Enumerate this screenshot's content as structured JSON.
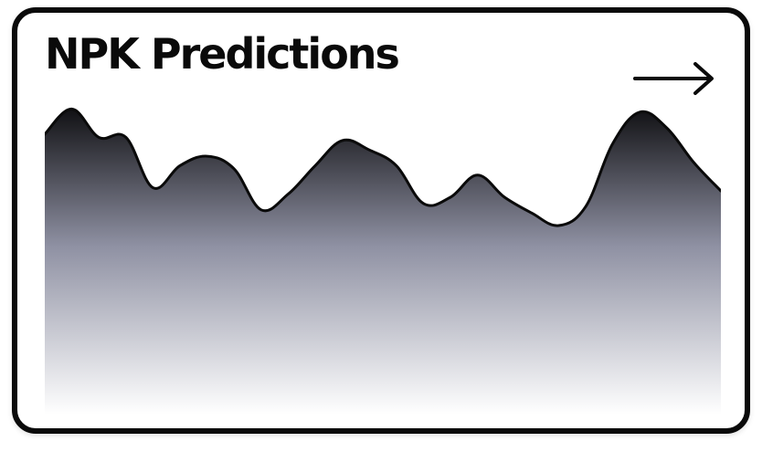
{
  "card": {
    "title": "NPK Predictions",
    "arrow_icon": "arrow-right-icon"
  },
  "colors": {
    "border": "#0a0a0a",
    "area_top": "#111114",
    "area_bottom": "#ffffff"
  },
  "chart_data": {
    "type": "area",
    "x": [
      0,
      1,
      2,
      3,
      4,
      5,
      6,
      7,
      8,
      9,
      10,
      11,
      12,
      13,
      14,
      15,
      16,
      17,
      18,
      19,
      20,
      21,
      22,
      23,
      24,
      25
    ],
    "series": [
      {
        "values": [
          89,
          97,
          88,
          88,
          72,
          79,
          82,
          78,
          65,
          70,
          79,
          87,
          84,
          79,
          67,
          69,
          76,
          69,
          64,
          60,
          66,
          86,
          96,
          91,
          80,
          71
        ]
      }
    ],
    "xlim": [
      0,
      25
    ],
    "ylim": [
      0,
      100
    ],
    "grid": false,
    "legend": "none",
    "title": "",
    "xlabel": "",
    "ylabel": ""
  }
}
